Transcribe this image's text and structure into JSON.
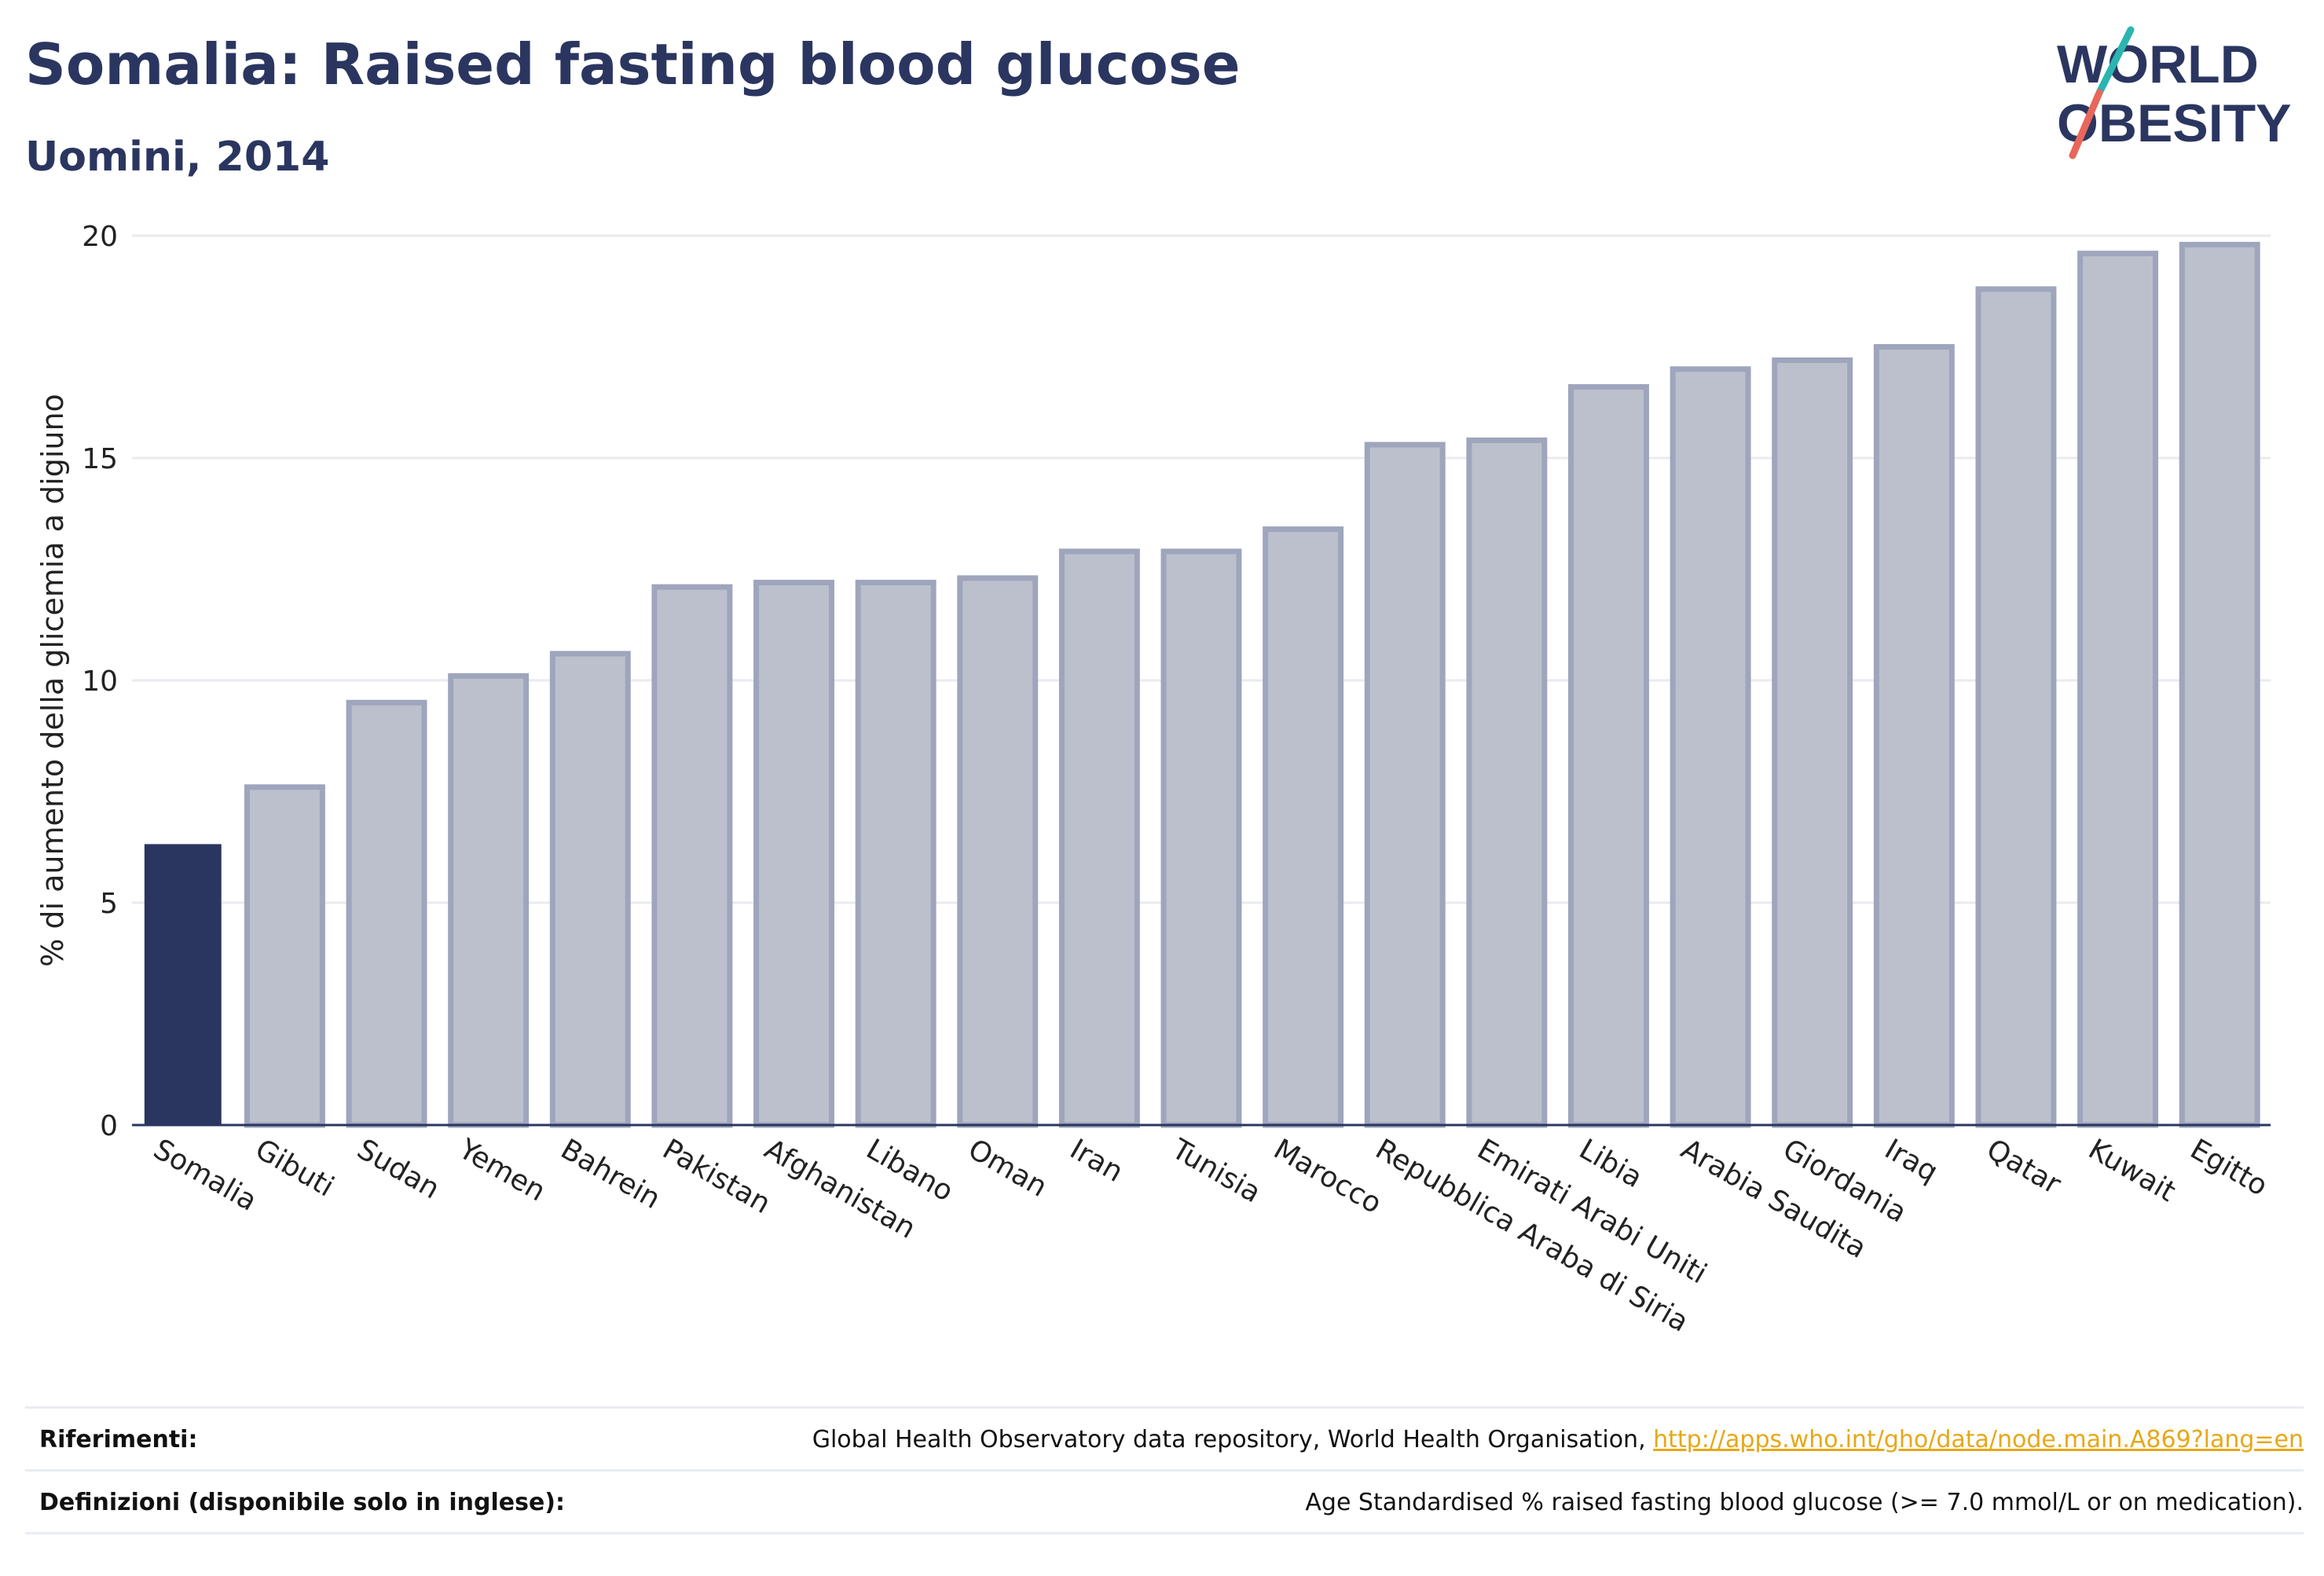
{
  "header": {
    "title": "Somalia: Raised fasting blood glucose",
    "subtitle": "Uomini, 2014"
  },
  "logo": {
    "line1": "WORLD",
    "line2": "OBESITY",
    "colors": {
      "text": "#2b3660",
      "slash_teal": "#2bb5b0",
      "slash_red": "#e8675a"
    }
  },
  "chart_data": {
    "type": "bar",
    "ylabel": "% di aumento della glicemia a digiuno",
    "xlabel": "",
    "ylim": [
      0,
      20
    ],
    "yticks": [
      0,
      5,
      10,
      15,
      20
    ],
    "grid": true,
    "categories": [
      "Somalia",
      "Gibuti",
      "Sudan",
      "Yemen",
      "Bahrein",
      "Pakistan",
      "Afghanistan",
      "Libano",
      "Oman",
      "Iran",
      "Tunisia",
      "Marocco",
      "Repubblica Araba di Siria",
      "Emirati Arabi Uniti",
      "Libia",
      "Arabia Saudita",
      "Giordania",
      "Iraq",
      "Qatar",
      "Kuwait",
      "Egitto"
    ],
    "values": [
      6.3,
      7.6,
      9.5,
      10.1,
      10.6,
      12.1,
      12.2,
      12.2,
      12.3,
      12.9,
      12.9,
      13.4,
      15.3,
      15.4,
      16.6,
      17.0,
      17.2,
      17.5,
      18.8,
      19.6,
      19.8
    ],
    "highlight": "Somalia",
    "colors": {
      "highlight": "#2b3660",
      "bar_fill": "#bcc0cc",
      "bar_stroke": "#9ea5bc",
      "grid": "#e9ebef",
      "axis": "#2b3660"
    }
  },
  "footer": {
    "references_label": "Riferimenti:",
    "references_text": "Global Health Observatory data repository, World Health Organisation, ",
    "references_link": "http://apps.who.int/gho/data/node.main.A869?lang=en",
    "definitions_label": "Definizioni (disponibile solo in inglese):",
    "definitions_text": "Age Standardised % raised fasting blood glucose (>= 7.0 mmol/L or on medication)."
  }
}
